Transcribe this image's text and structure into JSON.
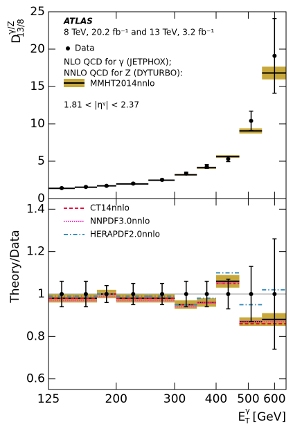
{
  "chart_data": [
    {
      "type": "binned",
      "y_label": {
        "main": "D",
        "sup": "γ/Z",
        "sub": "13/8"
      },
      "annotations": [
        "ATLAS",
        "8 TeV, 20.2 fb⁻¹ and 13 TeV, 3.2 fb⁻¹",
        "NLO QCD for γ (JETPHOX);",
        "NNLO QCD for Z (DYTURBO):",
        "1.81 < |ηᵞ| < 2.37"
      ],
      "log_x": true,
      "xlim": [
        125,
        650
      ],
      "ylim": [
        0,
        25
      ],
      "yticks": [
        0,
        5,
        10,
        15,
        20,
        25
      ],
      "bins": [
        125,
        150,
        175,
        200,
        250,
        300,
        350,
        400,
        470,
        550,
        650
      ],
      "x": [
        137,
        162,
        187,
        225,
        275,
        325,
        375,
        435,
        510,
        600
      ],
      "series": [
        {
          "name": "Data",
          "color": "#000000",
          "values": [
            1.4,
            1.55,
            1.7,
            2.0,
            2.5,
            3.35,
            4.3,
            5.3,
            10.4,
            19.1
          ],
          "errors": [
            0.08,
            0.08,
            0.08,
            0.1,
            0.12,
            0.18,
            0.25,
            0.35,
            1.3,
            5.0
          ]
        },
        {
          "name": "MMHT2014nnlo",
          "color": "#000000",
          "band_color": "#c8a83a",
          "values": [
            1.37,
            1.52,
            1.7,
            1.96,
            2.45,
            3.18,
            4.13,
            5.62,
            9.05,
            16.8
          ],
          "errors": [
            0.05,
            0.05,
            0.05,
            0.06,
            0.07,
            0.1,
            0.13,
            0.18,
            0.35,
            0.85
          ]
        }
      ]
    },
    {
      "type": "binned",
      "y_label": {
        "main": "Theory/Data"
      },
      "x_label": {
        "main": "E",
        "sup": "γ",
        "sub": "T",
        "unit": "[GeV]"
      },
      "log_x": true,
      "xlim": [
        125,
        650
      ],
      "ylim": [
        0.55,
        1.45
      ],
      "xticks": [
        125,
        200,
        300,
        400,
        500,
        600
      ],
      "yticks": [
        0.6,
        0.8,
        1,
        1.2,
        1.4
      ],
      "bins": [
        125,
        150,
        175,
        200,
        250,
        300,
        350,
        400,
        470,
        550,
        650
      ],
      "x": [
        137,
        162,
        187,
        225,
        275,
        325,
        375,
        435,
        510,
        600
      ],
      "data": {
        "color": "#000000",
        "values": [
          1,
          1,
          1,
          1,
          1,
          1,
          1,
          1,
          1,
          1
        ],
        "errors": [
          0.06,
          0.06,
          0.04,
          0.05,
          0.05,
          0.06,
          0.06,
          0.07,
          0.13,
          0.26
        ]
      },
      "series": [
        {
          "name": "MMHT2014nnlo",
          "color": "#000000",
          "band_color": "#c8a83a",
          "style": "solid",
          "values": [
            0.98,
            0.98,
            1.0,
            0.98,
            0.98,
            0.95,
            0.96,
            1.06,
            0.87,
            0.88
          ],
          "errors": [
            0.02,
            0.02,
            0.02,
            0.02,
            0.02,
            0.02,
            0.02,
            0.03,
            0.02,
            0.03
          ]
        },
        {
          "name": "CT14nnlo",
          "color": "#e8003c",
          "style": "dashed",
          "values": [
            0.98,
            0.98,
            1.0,
            0.98,
            0.98,
            0.95,
            0.96,
            1.05,
            0.86,
            0.86
          ]
        },
        {
          "name": "NNPDF3.0nnlo",
          "color": "#ff33cc",
          "style": "dotted",
          "values": [
            0.97,
            0.97,
            0.99,
            0.97,
            0.97,
            0.94,
            0.96,
            1.05,
            0.87,
            0.87
          ]
        },
        {
          "name": "HERAPDF2.0nnlo",
          "color": "#3a8fbf",
          "style": "dashdot",
          "values": [
            0.99,
            0.99,
            1.0,
            0.99,
            0.99,
            0.95,
            0.98,
            1.1,
            0.95,
            1.02
          ]
        }
      ]
    }
  ]
}
